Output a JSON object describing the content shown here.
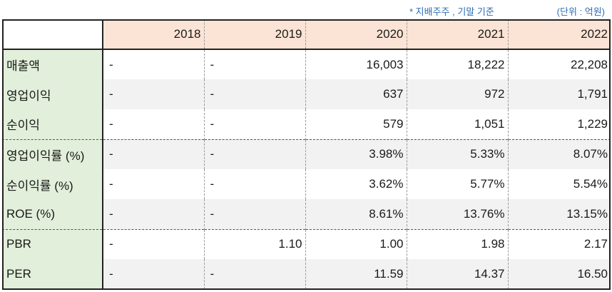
{
  "notes": {
    "basis": "* 지배주주 , 기말 기준",
    "unit": "(단위 : 억원)"
  },
  "table": {
    "years": [
      "2018",
      "2019",
      "2020",
      "2021",
      "2022"
    ],
    "rows": [
      {
        "label": "매출액",
        "values": [
          "-",
          "-",
          "16,003",
          "18,222",
          "22,208"
        ]
      },
      {
        "label": "영업이익",
        "values": [
          "-",
          "-",
          "637",
          "972",
          "1,791"
        ]
      },
      {
        "label": "순이익",
        "values": [
          "-",
          "-",
          "579",
          "1,051",
          "1,229"
        ]
      },
      {
        "label": "영업이익률 (%)",
        "values": [
          "-",
          "-",
          "3.98%",
          "5.33%",
          "8.07%"
        ]
      },
      {
        "label": "순이익률 (%)",
        "values": [
          "-",
          "-",
          "3.62%",
          "5.77%",
          "5.54%"
        ]
      },
      {
        "label": "ROE (%)",
        "values": [
          "-",
          "-",
          "8.61%",
          "13.76%",
          "13.15%"
        ]
      },
      {
        "label": "PBR",
        "values": [
          "-",
          "1.10",
          "1.00",
          "1.98",
          "2.17"
        ]
      },
      {
        "label": "PER",
        "values": [
          "-",
          "-",
          "11.59",
          "14.37",
          "16.50"
        ]
      }
    ]
  },
  "colors": {
    "header_bg": "#fbe4d5",
    "label_bg": "#e2efda",
    "note_text": "#2e6db4",
    "shade_row": "#f2f2f2"
  }
}
